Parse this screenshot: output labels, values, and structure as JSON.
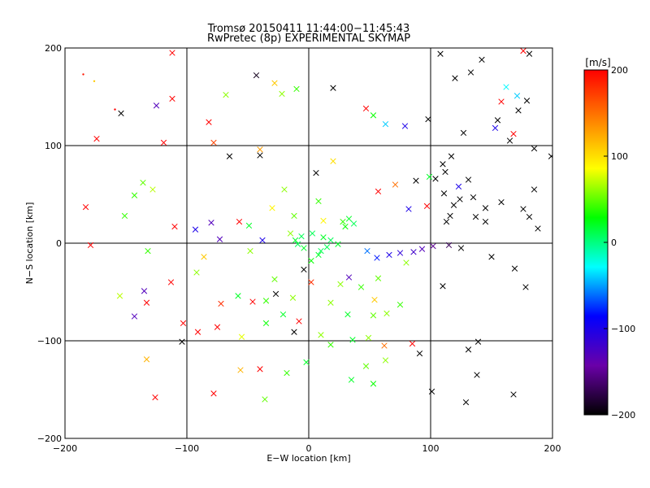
{
  "chart_data": {
    "type": "scatter",
    "title": "Tromsø 20150411 11:44:00−11:45:43",
    "subtitle": "RwPretec (8p) EXPERIMENTAL SKYMAP",
    "xlabel": "E−W location [km]",
    "ylabel": "N−S location [km]",
    "xlim": [
      -200,
      200
    ],
    "ylim": [
      -200,
      200
    ],
    "xticks": [
      -200,
      -100,
      0,
      100,
      200
    ],
    "yticks": [
      -200,
      -100,
      0,
      100,
      200
    ],
    "xtick_labels": [
      "−200",
      "−100",
      "0",
      "100",
      "200"
    ],
    "ytick_labels": [
      "−200",
      "−100",
      "0",
      "100",
      "200"
    ],
    "grid": true,
    "colorbar": {
      "label": "[m/s]",
      "range": [
        -200,
        200
      ],
      "ticks": [
        200,
        100,
        0,
        -100,
        -200
      ],
      "tick_labels": [
        "200",
        "100",
        "0",
        "−100",
        "−200"
      ],
      "colors": [
        "#000000",
        "#6a00a8",
        "#0000ff",
        "#00ffff",
        "#00ff00",
        "#ffff00",
        "#ff8000",
        "#ff0000"
      ]
    },
    "markers": {
      "small": "dot",
      "large": "x"
    },
    "points": [
      [
        -185,
        173,
        190,
        0
      ],
      [
        -176,
        166,
        110,
        0
      ],
      [
        -159,
        137,
        200,
        0
      ],
      [
        -112,
        195,
        200,
        1
      ],
      [
        -112,
        148,
        200,
        1
      ],
      [
        -125,
        141,
        -130,
        1
      ],
      [
        -154,
        133,
        -200,
        1
      ],
      [
        -82,
        124,
        200,
        1
      ],
      [
        -68,
        152,
        60,
        1
      ],
      [
        -43,
        172,
        -190,
        1
      ],
      [
        -28,
        164,
        110,
        1
      ],
      [
        -22,
        153,
        60,
        1
      ],
      [
        -10,
        158,
        40,
        1
      ],
      [
        20,
        159,
        -200,
        1
      ],
      [
        47,
        138,
        200,
        1
      ],
      [
        53,
        131,
        30,
        1
      ],
      [
        63,
        122,
        -40,
        1
      ],
      [
        79,
        120,
        -100,
        1
      ],
      [
        98,
        127,
        -200,
        1
      ],
      [
        -174,
        107,
        200,
        1
      ],
      [
        -119,
        103,
        200,
        1
      ],
      [
        -78,
        103,
        170,
        1
      ],
      [
        -65,
        89,
        -200,
        1
      ],
      [
        -40,
        96,
        130,
        1
      ],
      [
        -40,
        90,
        -200,
        1
      ],
      [
        6,
        72,
        -200,
        1
      ],
      [
        20,
        84,
        100,
        1
      ],
      [
        57,
        53,
        200,
        1
      ],
      [
        71,
        60,
        150,
        1
      ],
      [
        88,
        64,
        -200,
        1
      ],
      [
        99,
        68,
        20,
        1
      ],
      [
        -136,
        62,
        50,
        1
      ],
      [
        -128,
        55,
        70,
        1
      ],
      [
        -143,
        49,
        40,
        1
      ],
      [
        -183,
        37,
        200,
        1
      ],
      [
        -151,
        28,
        40,
        1
      ],
      [
        -110,
        17,
        200,
        1
      ],
      [
        -80,
        21,
        -130,
        1
      ],
      [
        -93,
        14,
        -100,
        1
      ],
      [
        -57,
        22,
        200,
        1
      ],
      [
        -49,
        18,
        20,
        1
      ],
      [
        -73,
        4,
        -130,
        1
      ],
      [
        -38,
        3,
        -100,
        1
      ],
      [
        -179,
        -2,
        200,
        1
      ],
      [
        -132,
        -8,
        40,
        1
      ],
      [
        -86,
        -14,
        110,
        1
      ],
      [
        -48,
        -8,
        60,
        1
      ],
      [
        -155,
        -54,
        70,
        1
      ],
      [
        -113,
        -40,
        200,
        1
      ],
      [
        -133,
        -61,
        200,
        1
      ],
      [
        -143,
        -75,
        -130,
        1
      ],
      [
        -135,
        -49,
        -130,
        1
      ],
      [
        -92,
        -30,
        60,
        1
      ],
      [
        -72,
        -62,
        180,
        1
      ],
      [
        -58,
        -54,
        20,
        1
      ],
      [
        -46,
        -60,
        200,
        1
      ],
      [
        -35,
        -59,
        40,
        1
      ],
      [
        -35,
        -82,
        30,
        1
      ],
      [
        -28,
        -37,
        50,
        1
      ],
      [
        -27,
        -52,
        -200,
        1
      ],
      [
        -13,
        -56,
        60,
        1
      ],
      [
        -12,
        -91,
        -200,
        1
      ],
      [
        -21,
        -73,
        20,
        1
      ],
      [
        -8,
        -80,
        200,
        1
      ],
      [
        -91,
        -91,
        200,
        1
      ],
      [
        -75,
        -86,
        200,
        1
      ],
      [
        -104,
        -101,
        -200,
        1
      ],
      [
        -103,
        -82,
        200,
        1
      ],
      [
        -55,
        -96,
        80,
        1
      ],
      [
        -40,
        -129,
        200,
        1
      ],
      [
        -56,
        -130,
        120,
        1
      ],
      [
        -78,
        -154,
        200,
        1
      ],
      [
        -133,
        -119,
        120,
        1
      ],
      [
        -126,
        -158,
        200,
        1
      ],
      [
        -36,
        -160,
        50,
        1
      ],
      [
        -18,
        -133,
        40,
        1
      ],
      [
        -2,
        -122,
        20,
        1
      ],
      [
        10,
        -94,
        60,
        1
      ],
      [
        18,
        -104,
        40,
        1
      ],
      [
        36,
        -99,
        20,
        1
      ],
      [
        49,
        -97,
        60,
        1
      ],
      [
        62,
        -105,
        150,
        1
      ],
      [
        85,
        -103,
        200,
        1
      ],
      [
        91,
        -113,
        -200,
        1
      ],
      [
        35,
        -140,
        20,
        1
      ],
      [
        47,
        -126,
        50,
        1
      ],
      [
        53,
        -144,
        30,
        1
      ],
      [
        63,
        -120,
        60,
        1
      ],
      [
        101,
        -152,
        -200,
        1
      ],
      [
        131,
        -109,
        -200,
        1
      ],
      [
        139,
        -101,
        -200,
        1
      ],
      [
        138,
        -135,
        -200,
        1
      ],
      [
        129,
        -163,
        -200,
        1
      ],
      [
        168,
        -155,
        -200,
        1
      ],
      [
        32,
        -73,
        20,
        1
      ],
      [
        54,
        -58,
        110,
        1
      ],
      [
        53,
        -74,
        50,
        1
      ],
      [
        64,
        -72,
        60,
        1
      ],
      [
        75,
        -63,
        40,
        1
      ],
      [
        18,
        -61,
        60,
        1
      ],
      [
        -4,
        -27,
        -200,
        1
      ],
      [
        2,
        -40,
        180,
        1
      ],
      [
        26,
        -42,
        60,
        1
      ],
      [
        43,
        -45,
        40,
        1
      ],
      [
        57,
        -36,
        50,
        1
      ],
      [
        80,
        -20,
        60,
        1
      ],
      [
        33,
        -35,
        -130,
        1
      ],
      [
        110,
        -44,
        -200,
        1
      ],
      [
        125,
        -5,
        -200,
        1
      ],
      [
        150,
        -14,
        -200,
        1
      ],
      [
        169,
        -26,
        -200,
        1
      ],
      [
        178,
        -45,
        -200,
        1
      ],
      [
        145,
        22,
        -200,
        1
      ],
      [
        145,
        36,
        -200,
        1
      ],
      [
        135,
        47,
        -200,
        1
      ],
      [
        158,
        42,
        -200,
        1
      ],
      [
        176,
        35,
        -200,
        1
      ],
      [
        181,
        27,
        -200,
        1
      ],
      [
        188,
        15,
        -200,
        1
      ],
      [
        185,
        55,
        -200,
        1
      ],
      [
        199,
        89,
        -200,
        1
      ],
      [
        185,
        97,
        -200,
        1
      ],
      [
        165,
        105,
        -200,
        1
      ],
      [
        153,
        118,
        -100,
        1
      ],
      [
        127,
        113,
        -200,
        1
      ],
      [
        155,
        126,
        -200,
        1
      ],
      [
        172,
        136,
        -200,
        1
      ],
      [
        179,
        146,
        -200,
        1
      ],
      [
        171,
        151,
        -40,
        1
      ],
      [
        158,
        145,
        200,
        1
      ],
      [
        162,
        160,
        -30,
        1
      ],
      [
        181,
        194,
        -200,
        1
      ],
      [
        176,
        197,
        200,
        1
      ],
      [
        168,
        112,
        200,
        1
      ],
      [
        120,
        169,
        -200,
        1
      ],
      [
        108,
        194,
        -200,
        1
      ],
      [
        133,
        175,
        -200,
        1
      ],
      [
        142,
        188,
        -200,
        1
      ],
      [
        117,
        89,
        -200,
        1
      ],
      [
        110,
        81,
        -200,
        1
      ],
      [
        112,
        73,
        -200,
        1
      ],
      [
        104,
        66,
        -200,
        1
      ],
      [
        111,
        51,
        -200,
        1
      ],
      [
        124,
        45,
        -200,
        1
      ],
      [
        119,
        39,
        -200,
        1
      ],
      [
        97,
        38,
        200,
        1
      ],
      [
        82,
        35,
        -100,
        1
      ],
      [
        131,
        65,
        -200,
        1
      ],
      [
        123,
        58,
        -100,
        1
      ],
      [
        116,
        28,
        -200,
        1
      ],
      [
        113,
        22,
        -200,
        1
      ],
      [
        137,
        27,
        -200,
        1
      ],
      [
        2,
        -18,
        30,
        1
      ],
      [
        8,
        -12,
        20,
        1
      ],
      [
        10,
        -8,
        10,
        1
      ],
      [
        -4,
        -5,
        20,
        1
      ],
      [
        -9,
        -1,
        10,
        1
      ],
      [
        -11,
        3,
        20,
        1
      ],
      [
        -6,
        7,
        10,
        1
      ],
      [
        3,
        10,
        10,
        1
      ],
      [
        12,
        6,
        20,
        1
      ],
      [
        18,
        3,
        10,
        1
      ],
      [
        24,
        -1,
        20,
        1
      ],
      [
        15,
        -4,
        10,
        1
      ],
      [
        28,
        22,
        40,
        1
      ],
      [
        33,
        25,
        20,
        1
      ],
      [
        30,
        17,
        30,
        1
      ],
      [
        37,
        20,
        10,
        1
      ],
      [
        -20,
        55,
        60,
        1
      ],
      [
        -12,
        28,
        50,
        1
      ],
      [
        -30,
        36,
        90,
        1
      ],
      [
        8,
        43,
        40,
        1
      ],
      [
        12,
        23,
        90,
        1
      ],
      [
        -15,
        10,
        60,
        1
      ],
      [
        48,
        -8,
        -60,
        1
      ],
      [
        56,
        -15,
        -80,
        1
      ],
      [
        66,
        -12,
        -100,
        1
      ],
      [
        75,
        -10,
        -110,
        1
      ],
      [
        86,
        -9,
        -120,
        1
      ],
      [
        93,
        -6,
        -130,
        1
      ],
      [
        102,
        -3,
        -150,
        1
      ],
      [
        115,
        -2,
        -170,
        1
      ]
    ]
  }
}
